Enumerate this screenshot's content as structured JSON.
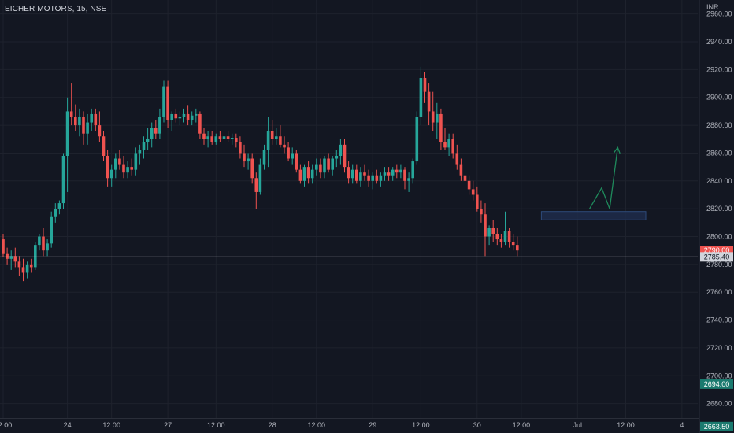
{
  "symbol": {
    "title": "EICHER MOTORS, 15, NSE"
  },
  "colors": {
    "background": "#131722",
    "up": "#26a69a",
    "down": "#ef5350",
    "grid": "#1e222d",
    "axis_text": "#b2b5be",
    "support_line": "#d1d4dc",
    "zone_fill": "#1e2b4a",
    "zone_border": "#2d4a7a",
    "arrow": "#1f8a5c"
  },
  "chart_data": {
    "type": "candlestick",
    "currency": "INR",
    "ylim": [
      2660,
      2970
    ],
    "y_ticks": [
      "2960.00",
      "2940.00",
      "2920.00",
      "2900.00",
      "2880.00",
      "2860.00",
      "2840.00",
      "2820.00",
      "2800.00",
      "2780.00",
      "2760.00",
      "2740.00",
      "2720.00",
      "2700.00",
      "2680.00"
    ],
    "x_ticks": [
      {
        "label": "12:00",
        "slot": 0
      },
      {
        "label": "24",
        "slot": 16
      },
      {
        "label": "12:00",
        "slot": 27
      },
      {
        "label": "27",
        "slot": 41
      },
      {
        "label": "12:00",
        "slot": 53
      },
      {
        "label": "28",
        "slot": 67
      },
      {
        "label": "12:00",
        "slot": 78
      },
      {
        "label": "29",
        "slot": 92
      },
      {
        "label": "12:00",
        "slot": 104
      },
      {
        "label": "30",
        "slot": 118
      },
      {
        "label": "12:00",
        "slot": 129
      },
      {
        "label": "Jul",
        "slot": 143
      },
      {
        "label": "12:00",
        "slot": 155
      },
      {
        "label": "4",
        "slot": 169
      }
    ],
    "price_tags": [
      {
        "label": "2790.00",
        "value": 2790,
        "style": "down"
      },
      {
        "label": "2785.40",
        "value": 2785.4,
        "style": "line"
      },
      {
        "label": "2694.00",
        "value": 2694,
        "style": "up"
      },
      {
        "label": "2663.50",
        "value": 2663.5,
        "style": "up"
      }
    ],
    "support_level": 2785.4,
    "demand_zone": {
      "slot_start": 134,
      "slot_end": 160,
      "low": 2812,
      "high": 2818
    },
    "projection": [
      {
        "slot": 146,
        "price": 2820
      },
      {
        "slot": 149,
        "price": 2835
      },
      {
        "slot": 151,
        "price": 2820
      },
      {
        "slot": 153,
        "price": 2864
      }
    ],
    "candles": [
      [
        2798,
        2802,
        2785,
        2788
      ],
      [
        2788,
        2792,
        2780,
        2784
      ],
      [
        2784,
        2790,
        2776,
        2786
      ],
      [
        2786,
        2792,
        2778,
        2782
      ],
      [
        2782,
        2786,
        2772,
        2778
      ],
      [
        2778,
        2784,
        2768,
        2774
      ],
      [
        2774,
        2782,
        2770,
        2780
      ],
      [
        2780,
        2784,
        2774,
        2778
      ],
      [
        2778,
        2796,
        2776,
        2794
      ],
      [
        2794,
        2802,
        2790,
        2800
      ],
      [
        2800,
        2806,
        2786,
        2790
      ],
      [
        2790,
        2798,
        2786,
        2795
      ],
      [
        2795,
        2818,
        2792,
        2814
      ],
      [
        2814,
        2824,
        2810,
        2820
      ],
      [
        2820,
        2826,
        2816,
        2824
      ],
      [
        2824,
        2860,
        2820,
        2858
      ],
      [
        2858,
        2900,
        2832,
        2890
      ],
      [
        2890,
        2910,
        2880,
        2886
      ],
      [
        2886,
        2895,
        2876,
        2880
      ],
      [
        2880,
        2892,
        2872,
        2886
      ],
      [
        2886,
        2890,
        2866,
        2874
      ],
      [
        2874,
        2888,
        2866,
        2882
      ],
      [
        2882,
        2892,
        2876,
        2888
      ],
      [
        2888,
        2892,
        2876,
        2880
      ],
      [
        2880,
        2890,
        2868,
        2872
      ],
      [
        2872,
        2876,
        2854,
        2858
      ],
      [
        2858,
        2862,
        2836,
        2842
      ],
      [
        2842,
        2852,
        2836,
        2848
      ],
      [
        2848,
        2860,
        2842,
        2856
      ],
      [
        2856,
        2862,
        2848,
        2852
      ],
      [
        2852,
        2858,
        2842,
        2846
      ],
      [
        2846,
        2854,
        2842,
        2850
      ],
      [
        2850,
        2856,
        2844,
        2848
      ],
      [
        2848,
        2864,
        2844,
        2860
      ],
      [
        2860,
        2866,
        2852,
        2862
      ],
      [
        2862,
        2872,
        2856,
        2868
      ],
      [
        2868,
        2878,
        2862,
        2870
      ],
      [
        2870,
        2882,
        2864,
        2878
      ],
      [
        2878,
        2884,
        2870,
        2874
      ],
      [
        2874,
        2892,
        2870,
        2886
      ],
      [
        2886,
        2912,
        2882,
        2908
      ],
      [
        2908,
        2912,
        2878,
        2884
      ],
      [
        2884,
        2890,
        2876,
        2888
      ],
      [
        2888,
        2892,
        2882,
        2885
      ],
      [
        2885,
        2890,
        2880,
        2886
      ],
      [
        2886,
        2892,
        2882,
        2888
      ],
      [
        2888,
        2894,
        2880,
        2884
      ],
      [
        2884,
        2890,
        2880,
        2887
      ],
      [
        2887,
        2892,
        2882,
        2888
      ],
      [
        2888,
        2890,
        2870,
        2874
      ],
      [
        2874,
        2878,
        2866,
        2870
      ],
      [
        2870,
        2876,
        2864,
        2872
      ],
      [
        2872,
        2876,
        2866,
        2868
      ],
      [
        2868,
        2874,
        2866,
        2872
      ],
      [
        2872,
        2876,
        2868,
        2870
      ],
      [
        2870,
        2874,
        2866,
        2872
      ],
      [
        2872,
        2876,
        2868,
        2870
      ],
      [
        2870,
        2874,
        2866,
        2871
      ],
      [
        2871,
        2874,
        2864,
        2868
      ],
      [
        2868,
        2872,
        2856,
        2860
      ],
      [
        2860,
        2866,
        2850,
        2854
      ],
      [
        2854,
        2860,
        2848,
        2856
      ],
      [
        2856,
        2860,
        2838,
        2842
      ],
      [
        2842,
        2846,
        2820,
        2832
      ],
      [
        2832,
        2856,
        2830,
        2852
      ],
      [
        2852,
        2866,
        2848,
        2862
      ],
      [
        2862,
        2886,
        2850,
        2876
      ],
      [
        2876,
        2884,
        2866,
        2870
      ],
      [
        2870,
        2878,
        2866,
        2872
      ],
      [
        2872,
        2880,
        2864,
        2866
      ],
      [
        2866,
        2872,
        2860,
        2864
      ],
      [
        2864,
        2868,
        2854,
        2856
      ],
      [
        2856,
        2864,
        2852,
        2860
      ],
      [
        2860,
        2862,
        2846,
        2848
      ],
      [
        2848,
        2852,
        2838,
        2840
      ],
      [
        2840,
        2852,
        2836,
        2850
      ],
      [
        2850,
        2854,
        2838,
        2842
      ],
      [
        2842,
        2852,
        2838,
        2848
      ],
      [
        2848,
        2856,
        2844,
        2852
      ],
      [
        2852,
        2856,
        2842,
        2846
      ],
      [
        2846,
        2858,
        2842,
        2856
      ],
      [
        2856,
        2860,
        2846,
        2848
      ],
      [
        2848,
        2858,
        2844,
        2856
      ],
      [
        2856,
        2862,
        2850,
        2858
      ],
      [
        2858,
        2870,
        2852,
        2866
      ],
      [
        2866,
        2870,
        2846,
        2850
      ],
      [
        2850,
        2854,
        2838,
        2842
      ],
      [
        2842,
        2852,
        2838,
        2848
      ],
      [
        2848,
        2852,
        2838,
        2840
      ],
      [
        2840,
        2850,
        2836,
        2846
      ],
      [
        2846,
        2852,
        2840,
        2844
      ],
      [
        2844,
        2848,
        2836,
        2840
      ],
      [
        2840,
        2846,
        2834,
        2844
      ],
      [
        2844,
        2848,
        2838,
        2840
      ],
      [
        2840,
        2846,
        2836,
        2844
      ],
      [
        2844,
        2850,
        2840,
        2846
      ],
      [
        2846,
        2850,
        2840,
        2844
      ],
      [
        2844,
        2850,
        2840,
        2848
      ],
      [
        2848,
        2852,
        2842,
        2846
      ],
      [
        2846,
        2852,
        2842,
        2848
      ],
      [
        2848,
        2850,
        2834,
        2840
      ],
      [
        2840,
        2846,
        2832,
        2842
      ],
      [
        2842,
        2856,
        2838,
        2854
      ],
      [
        2854,
        2890,
        2852,
        2886
      ],
      [
        2886,
        2922,
        2880,
        2914
      ],
      [
        2914,
        2918,
        2896,
        2904
      ],
      [
        2904,
        2910,
        2880,
        2890
      ],
      [
        2890,
        2904,
        2876,
        2882
      ],
      [
        2882,
        2896,
        2870,
        2888
      ],
      [
        2888,
        2892,
        2862,
        2868
      ],
      [
        2868,
        2878,
        2862,
        2864
      ],
      [
        2864,
        2874,
        2858,
        2870
      ],
      [
        2870,
        2874,
        2856,
        2860
      ],
      [
        2860,
        2866,
        2848,
        2852
      ],
      [
        2852,
        2856,
        2840,
        2844
      ],
      [
        2844,
        2852,
        2836,
        2840
      ],
      [
        2840,
        2844,
        2830,
        2834
      ],
      [
        2834,
        2840,
        2826,
        2830
      ],
      [
        2830,
        2836,
        2818,
        2820
      ],
      [
        2820,
        2826,
        2810,
        2816
      ],
      [
        2816,
        2824,
        2786,
        2800
      ],
      [
        2800,
        2808,
        2794,
        2806
      ],
      [
        2806,
        2812,
        2796,
        2802
      ],
      [
        2802,
        2806,
        2794,
        2798
      ],
      [
        2798,
        2802,
        2792,
        2796
      ],
      [
        2796,
        2818,
        2794,
        2804
      ],
      [
        2804,
        2806,
        2792,
        2796
      ],
      [
        2796,
        2802,
        2790,
        2794
      ],
      [
        2794,
        2800,
        2786,
        2790
      ]
    ]
  }
}
